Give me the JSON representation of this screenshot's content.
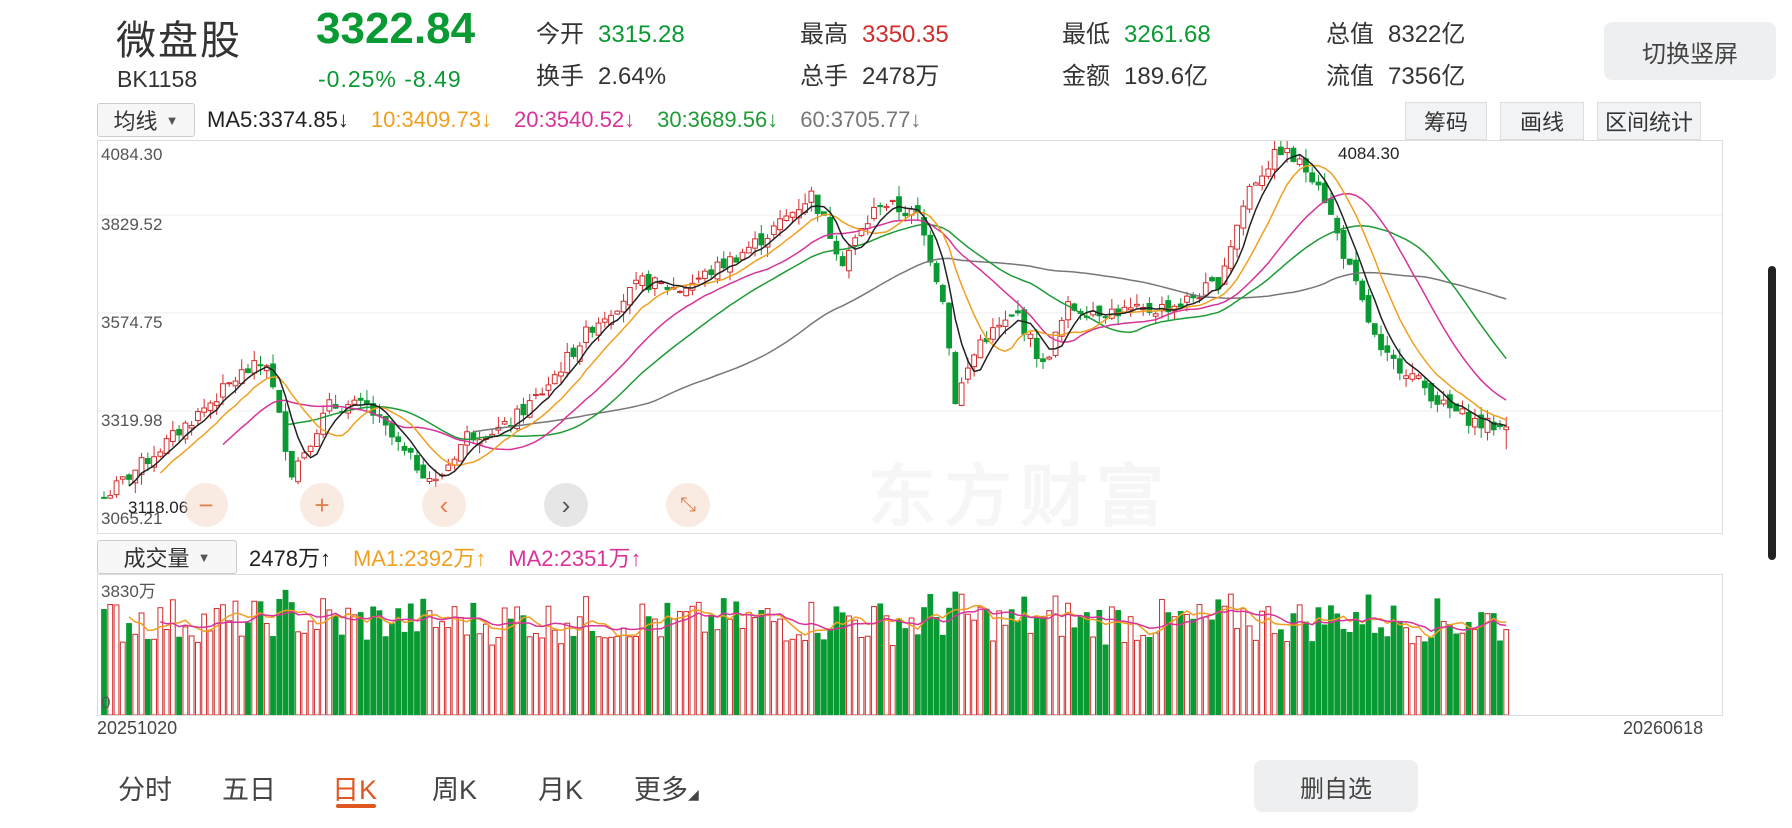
{
  "header": {
    "name": "微盘股",
    "code": "BK1158",
    "price": "3322.84",
    "change": "-0.25%  -8.49",
    "stats": [
      {
        "k": "今开",
        "v": "3315.28",
        "color": "green"
      },
      {
        "k": "最高",
        "v": "3350.35",
        "color": "red"
      },
      {
        "k": "最低",
        "v": "3261.68",
        "color": "green"
      },
      {
        "k": "总值",
        "v": "8322亿",
        "color": "normal"
      },
      {
        "k": "换手",
        "v": "2.64%",
        "color": "normal"
      },
      {
        "k": "总手",
        "v": "2478万",
        "color": "normal"
      },
      {
        "k": "金额",
        "v": "189.6亿",
        "color": "normal"
      },
      {
        "k": "流值",
        "v": "7356亿",
        "color": "normal"
      }
    ],
    "switch_button": "切换竖屏"
  },
  "ma_bar": {
    "dropdown": "均线",
    "items": [
      {
        "text": "MA5:3374.85↓",
        "color": "#222222"
      },
      {
        "text": "10:3409.73↓",
        "color": "#f0a020"
      },
      {
        "text": "20:3540.52↓",
        "color": "#d8339a"
      },
      {
        "text": "30:3689.56↓",
        "color": "#1f9b36"
      },
      {
        "text": "60:3705.77↓",
        "color": "#777777"
      }
    ],
    "buttons": [
      "筹码",
      "画线",
      "区间统计"
    ]
  },
  "price_axis": [
    "4084.30",
    "3829.52",
    "3574.75",
    "3319.98",
    "3065.21"
  ],
  "annotations": {
    "high": "4084.30",
    "low": "3118.06"
  },
  "watermark": "东方财富",
  "volume_bar": {
    "dropdown": "成交量",
    "current": "2478万↑",
    "ma1": "MA1:2392万↑",
    "ma2": "MA2:2351万↑",
    "axis_top": "3830万",
    "axis_bottom": "0"
  },
  "dates": {
    "start": "20251020",
    "end": "20260618"
  },
  "tabs": [
    "分时",
    "五日",
    "日K",
    "周K",
    "月K",
    "更多"
  ],
  "active_tab": "日K",
  "delete_button": "删自选",
  "chart_data": {
    "type": "candlestick",
    "ylim": [
      3065.21,
      4084.3
    ],
    "volume_max_wan": 3830,
    "start_value": 3130,
    "waypoints": [
      [
        0,
        3130
      ],
      [
        10,
        3280
      ],
      [
        22,
        3470
      ],
      [
        26,
        3500
      ],
      [
        30,
        3200
      ],
      [
        36,
        3380
      ],
      [
        42,
        3380
      ],
      [
        48,
        3250
      ],
      [
        53,
        3170
      ],
      [
        58,
        3300
      ],
      [
        64,
        3320
      ],
      [
        70,
        3420
      ],
      [
        78,
        3600
      ],
      [
        86,
        3720
      ],
      [
        92,
        3700
      ],
      [
        100,
        3780
      ],
      [
        106,
        3850
      ],
      [
        113,
        3960
      ],
      [
        118,
        3780
      ],
      [
        124,
        3940
      ],
      [
        130,
        3900
      ],
      [
        134,
        3680
      ],
      [
        136,
        3400
      ],
      [
        140,
        3560
      ],
      [
        146,
        3630
      ],
      [
        150,
        3490
      ],
      [
        154,
        3650
      ],
      [
        160,
        3640
      ],
      [
        166,
        3640
      ],
      [
        172,
        3660
      ],
      [
        178,
        3720
      ],
      [
        183,
        3980
      ],
      [
        188,
        4084.3
      ],
      [
        194,
        4000
      ],
      [
        198,
        3800
      ],
      [
        204,
        3520
      ],
      [
        208,
        3480
      ],
      [
        214,
        3380
      ],
      [
        220,
        3330
      ],
      [
        224,
        3322.84
      ]
    ]
  }
}
